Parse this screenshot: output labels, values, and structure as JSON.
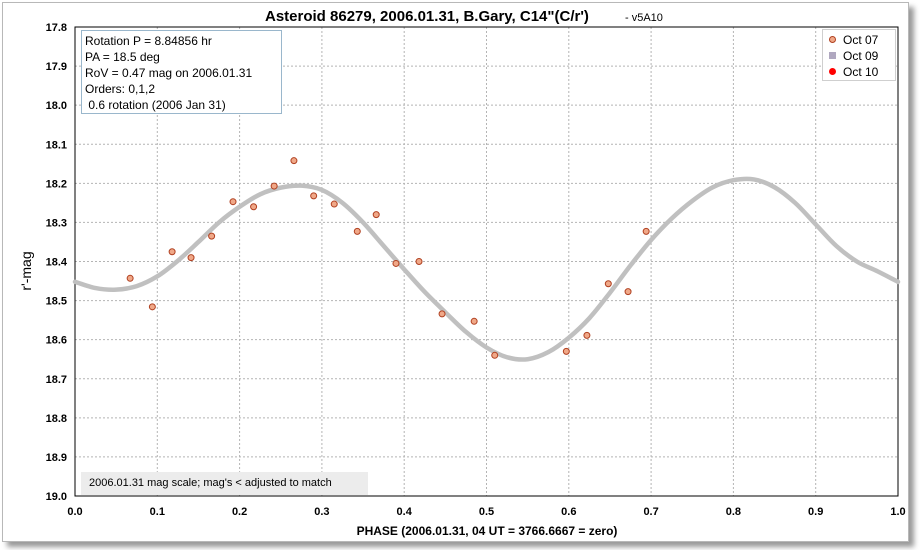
{
  "chart_data": {
    "type": "scatter",
    "title": "Asteroid 86279, 2006.01.31, B.Gary, C14\"(C/r')",
    "subtitle": "- v5A10",
    "xlabel": "PHASE (2006.01.31, 04 UT = 3766.6667 = zero)",
    "ylabel": "r'-mag",
    "xlim": [
      0.0,
      1.0
    ],
    "ylim": [
      19.0,
      17.8
    ],
    "y_inverted": true,
    "x_ticks": [
      "0.0",
      "0.1",
      "0.2",
      "0.3",
      "0.4",
      "0.5",
      "0.6",
      "0.7",
      "0.8",
      "0.9",
      "1.0"
    ],
    "x_tick_values": [
      0.0,
      0.1,
      0.2,
      0.3,
      0.4,
      0.5,
      0.6,
      0.7,
      0.8,
      0.9,
      1.0
    ],
    "y_ticks": [
      "17.8",
      "17.9",
      "18.0",
      "18.1",
      "18.2",
      "18.3",
      "18.4",
      "18.5",
      "18.6",
      "18.7",
      "18.8",
      "18.9",
      "19.0"
    ],
    "y_tick_values": [
      17.8,
      17.9,
      18.0,
      18.1,
      18.2,
      18.3,
      18.4,
      18.5,
      18.6,
      18.7,
      18.8,
      18.9,
      19.0
    ],
    "grid": true,
    "legend_position": "top-right",
    "series": [
      {
        "name": "Oct 07",
        "marker": "circle",
        "color": "#f0a888",
        "edge_color": "#b04020",
        "points": [
          [
            0.067,
            18.443
          ],
          [
            0.094,
            18.516
          ],
          [
            0.118,
            18.375
          ],
          [
            0.141,
            18.39
          ],
          [
            0.166,
            18.335
          ],
          [
            0.192,
            18.247
          ],
          [
            0.217,
            18.26
          ],
          [
            0.242,
            18.207
          ],
          [
            0.266,
            18.142
          ],
          [
            0.29,
            18.232
          ],
          [
            0.315,
            18.253
          ],
          [
            0.343,
            18.323
          ],
          [
            0.366,
            18.28
          ],
          [
            0.39,
            18.405
          ],
          [
            0.418,
            18.4
          ],
          [
            0.446,
            18.534
          ],
          [
            0.485,
            18.553
          ],
          [
            0.51,
            18.64
          ],
          [
            0.597,
            18.63
          ],
          [
            0.622,
            18.589
          ],
          [
            0.648,
            18.457
          ],
          [
            0.672,
            18.477
          ],
          [
            0.694,
            18.323
          ]
        ]
      },
      {
        "name": "Oct 09",
        "marker": "square",
        "color": "#b0a8c0",
        "points": []
      },
      {
        "name": "Oct 10",
        "marker": "circle",
        "color": "#ff0000",
        "points": []
      }
    ],
    "fit_curve": {
      "color": "#c0c0c0",
      "points": [
        [
          0.0,
          18.452
        ],
        [
          0.025,
          18.468
        ],
        [
          0.05,
          18.472
        ],
        [
          0.075,
          18.463
        ],
        [
          0.1,
          18.438
        ],
        [
          0.125,
          18.398
        ],
        [
          0.15,
          18.35
        ],
        [
          0.175,
          18.3
        ],
        [
          0.2,
          18.26
        ],
        [
          0.225,
          18.228
        ],
        [
          0.25,
          18.211
        ],
        [
          0.275,
          18.206
        ],
        [
          0.3,
          18.217
        ],
        [
          0.325,
          18.25
        ],
        [
          0.35,
          18.3
        ],
        [
          0.375,
          18.36
        ],
        [
          0.4,
          18.42
        ],
        [
          0.425,
          18.478
        ],
        [
          0.45,
          18.53
        ],
        [
          0.475,
          18.58
        ],
        [
          0.5,
          18.62
        ],
        [
          0.525,
          18.645
        ],
        [
          0.55,
          18.65
        ],
        [
          0.575,
          18.632
        ],
        [
          0.6,
          18.595
        ],
        [
          0.625,
          18.545
        ],
        [
          0.65,
          18.48
        ],
        [
          0.675,
          18.41
        ],
        [
          0.7,
          18.345
        ],
        [
          0.725,
          18.29
        ],
        [
          0.75,
          18.245
        ],
        [
          0.775,
          18.21
        ],
        [
          0.8,
          18.192
        ],
        [
          0.825,
          18.19
        ],
        [
          0.85,
          18.21
        ],
        [
          0.875,
          18.25
        ],
        [
          0.9,
          18.305
        ],
        [
          0.925,
          18.36
        ],
        [
          0.95,
          18.4
        ],
        [
          0.975,
          18.425
        ],
        [
          1.0,
          18.452
        ]
      ]
    }
  },
  "info_box": {
    "lines": [
      "Rotation P = 8.84856 hr",
      "PA =  18.5 deg",
      "RoV = 0.47 mag on 2006.01.31",
      "Orders: 0,1,2",
      " 0.6 rotation (2006 Jan 31)"
    ]
  },
  "note": "2006.01.31 mag scale; mag's < adjusted to match"
}
